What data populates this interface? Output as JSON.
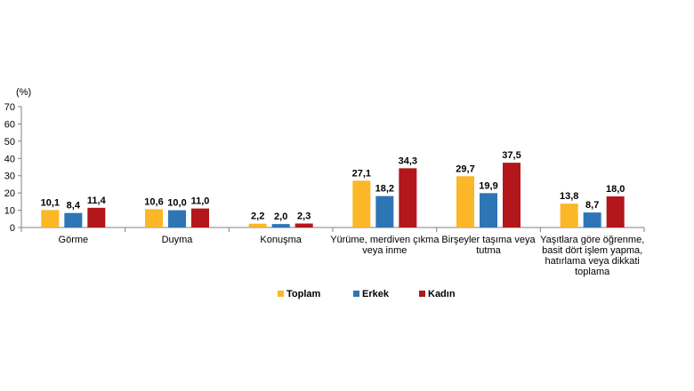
{
  "chart_data": {
    "type": "bar",
    "unit_label": "(%)",
    "categories": [
      [
        "Görme"
      ],
      [
        "Duyma"
      ],
      [
        "Konuşma"
      ],
      [
        "Yürüme, merdiven çıkma",
        "veya inme"
      ],
      [
        "Birşeyler taşıma veya",
        "tutma"
      ],
      [
        "Yaşıtlara göre öğrenme,",
        "basit dört işlem yapma,",
        "hatırlama veya dikkati",
        "toplama"
      ]
    ],
    "series": [
      {
        "name": "Toplam",
        "color": "#FBB727",
        "values": [
          10.1,
          10.6,
          2.2,
          27.1,
          29.7,
          13.8
        ],
        "labels": [
          "10,1",
          "10,6",
          "2,2",
          "27,1",
          "29,7",
          "13,8"
        ]
      },
      {
        "name": "Erkek",
        "color": "#2E75B6",
        "values": [
          8.4,
          10.0,
          2.0,
          18.2,
          19.9,
          8.7
        ],
        "labels": [
          "8,4",
          "10,0",
          "2,0",
          "18,2",
          "19,9",
          "8,7"
        ]
      },
      {
        "name": "Kadın",
        "color": "#B3161B",
        "values": [
          11.4,
          11.0,
          2.3,
          34.3,
          37.5,
          18.0
        ],
        "labels": [
          "11,4",
          "11,0",
          "2,3",
          "34,3",
          "37,5",
          "18,0"
        ]
      }
    ],
    "ylim": [
      0,
      70
    ],
    "yticks": [
      "0",
      "10",
      "20",
      "30",
      "40",
      "50",
      "60",
      "70"
    ],
    "grid": false,
    "legend_position": "bottom"
  }
}
